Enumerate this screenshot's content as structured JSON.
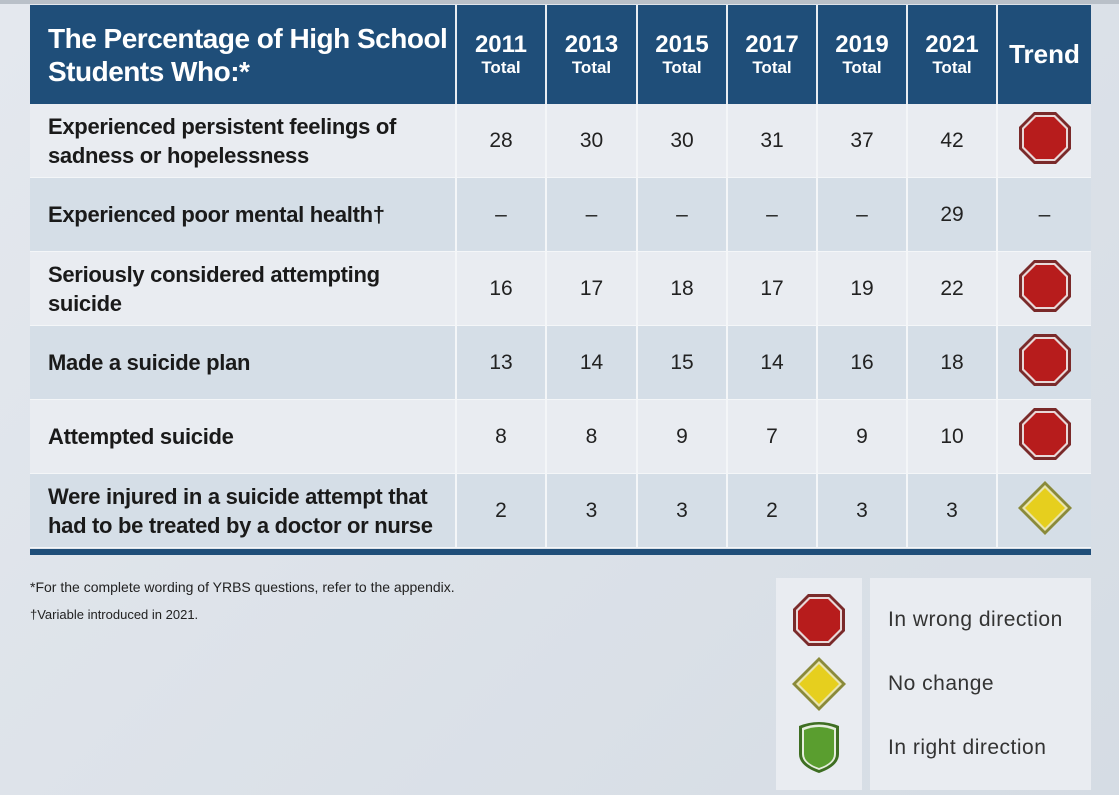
{
  "header": {
    "title": "The Percentage of High School Students Who:*",
    "years": [
      {
        "year": "2011",
        "sub": "Total"
      },
      {
        "year": "2013",
        "sub": "Total"
      },
      {
        "year": "2015",
        "sub": "Total"
      },
      {
        "year": "2017",
        "sub": "Total"
      },
      {
        "year": "2019",
        "sub": "Total"
      },
      {
        "year": "2021",
        "sub": "Total"
      }
    ],
    "trend": "Trend"
  },
  "rows": [
    {
      "label": "Experienced persistent feelings of sadness or hopelessness",
      "values": [
        "28",
        "30",
        "30",
        "31",
        "37",
        "42"
      ],
      "trend": "wrong-direction"
    },
    {
      "label": "Experienced poor mental health†",
      "values": [
        "–",
        "–",
        "–",
        "–",
        "–",
        "29"
      ],
      "trend": "–"
    },
    {
      "label": "Seriously considered attempting suicide",
      "values": [
        "16",
        "17",
        "18",
        "17",
        "19",
        "22"
      ],
      "trend": "wrong-direction"
    },
    {
      "label": "Made a suicide plan",
      "values": [
        "13",
        "14",
        "15",
        "14",
        "16",
        "18"
      ],
      "trend": "wrong-direction"
    },
    {
      "label": "Attempted suicide",
      "values": [
        "8",
        "8",
        "9",
        "7",
        "9",
        "10"
      ],
      "trend": "wrong-direction"
    },
    {
      "label": "Were injured in a suicide attempt that had to be treated by a doctor or nurse",
      "values": [
        "2",
        "3",
        "3",
        "2",
        "3",
        "3"
      ],
      "trend": "no-change"
    }
  ],
  "footnotes": [
    "*For the complete wording of YRBS questions, refer to the appendix.",
    "†Variable introduced in 2021."
  ],
  "legend": [
    {
      "icon": "red-octagon-icon",
      "label": "In wrong direction"
    },
    {
      "icon": "yellow-diamond-icon",
      "label": "No change"
    },
    {
      "icon": "green-shield-icon",
      "label": "In right direction"
    }
  ],
  "colors": {
    "header": "#1f4e79",
    "wrong": "#b71c1c",
    "nochange": "#e6cf1e",
    "right": "#5a9e2f"
  }
}
